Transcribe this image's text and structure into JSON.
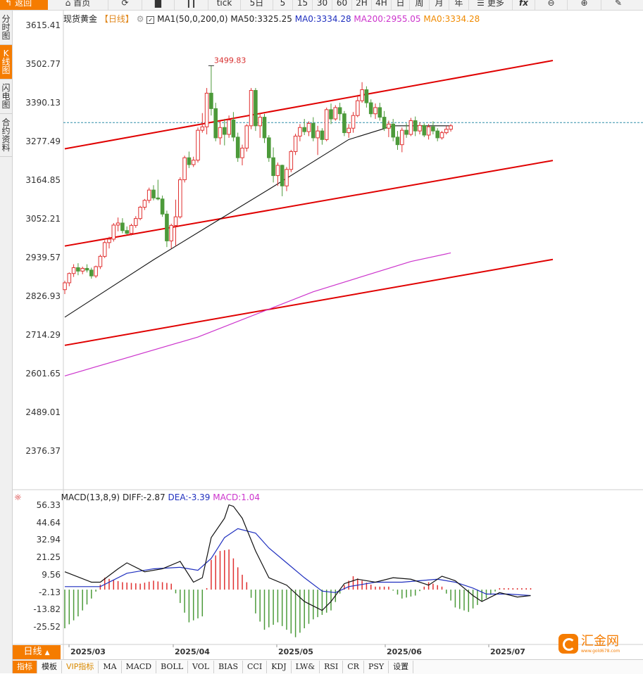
{
  "toolbar": {
    "back": "返回",
    "home": "首页",
    "tick": "tick",
    "periods": [
      "5日",
      "5",
      "15",
      "30",
      "60",
      "2H",
      "4H",
      "日",
      "周",
      "月",
      "年"
    ],
    "more": "更多",
    "fx": "fx"
  },
  "sidebar": {
    "tabs": [
      "分时图",
      "K线图",
      "闪电图",
      "合约资料"
    ],
    "active": 1
  },
  "main_header": {
    "instrument": "现货黄金",
    "period_label": "【日线】",
    "ma1": "MA1(50,0,200,0)",
    "ma50": "MA50:3325.25",
    "ma0a": "MA0:3334.28",
    "ma200": "MA200:2955.05",
    "ma0b": "MA0:3334.28"
  },
  "price_axis": [
    "3615.41",
    "3502.77",
    "3390.13",
    "3277.49",
    "3164.85",
    "3052.21",
    "2939.57",
    "2826.93",
    "2714.29",
    "2601.65",
    "2489.01",
    "2376.37"
  ],
  "high_label": "3499.83",
  "macd_header": {
    "name": "MACD(13,8,9)",
    "diff": "DIFF:-2.87",
    "dea": "DEA:-3.39",
    "macd": "MACD:1.04"
  },
  "macd_axis": [
    "56.33",
    "44.64",
    "32.94",
    "21.25",
    "9.56",
    "-2.13",
    "-13.82",
    "-25.52"
  ],
  "time_axis": [
    "2025/03",
    "2025/04",
    "2025/05",
    "2025/06",
    "2025/07"
  ],
  "bottom_tabs": {
    "label": "日线",
    "tabs": [
      "指标",
      "模板",
      "VIP指标",
      "MA",
      "MACD",
      "BOLL",
      "VOL",
      "BIAS",
      "CCI",
      "KDJ",
      "LW&",
      "RSI",
      "CR",
      "PSY",
      "设置"
    ]
  },
  "logo": {
    "text": "汇金网",
    "url_text": "www.gold678.com"
  },
  "colors": {
    "accent": "#f57c00",
    "up": "#e03030",
    "down": "#4c9a3a",
    "channel": "#e00000",
    "ma200": "#cc33cc",
    "dea": "#1f2fbf"
  },
  "chart_data": {
    "type": "candlestick",
    "ylim": [
      2320,
      3640
    ],
    "candles_ohlc": [
      [
        2848,
        2874,
        2835,
        2868
      ],
      [
        2868,
        2898,
        2858,
        2895
      ],
      [
        2895,
        2922,
        2885,
        2912
      ],
      [
        2912,
        2925,
        2890,
        2902
      ],
      [
        2902,
        2915,
        2893,
        2910
      ],
      [
        2910,
        2922,
        2898,
        2905
      ],
      [
        2905,
        2912,
        2880,
        2888
      ],
      [
        2888,
        2918,
        2882,
        2915
      ],
      [
        2915,
        2950,
        2908,
        2945
      ],
      [
        2945,
        2992,
        2940,
        2985
      ],
      [
        2985,
        3002,
        2968,
        2995
      ],
      [
        2995,
        3042,
        2988,
        3036
      ],
      [
        3036,
        3058,
        3018,
        3042
      ],
      [
        3042,
        3056,
        3012,
        3020
      ],
      [
        3020,
        3032,
        3008,
        3012
      ],
      [
        3012,
        3040,
        3006,
        3035
      ],
      [
        3035,
        3062,
        3028,
        3055
      ],
      [
        3055,
        3092,
        3050,
        3088
      ],
      [
        3088,
        3112,
        3080,
        3108
      ],
      [
        3108,
        3145,
        3100,
        3138
      ],
      [
        3138,
        3152,
        3108,
        3115
      ],
      [
        3115,
        3168,
        3108,
        3112
      ],
      [
        3112,
        3122,
        3060,
        3068
      ],
      [
        3068,
        3078,
        2972,
        2990
      ],
      [
        2990,
        3040,
        2968,
        3035
      ],
      [
        3035,
        3110,
        2975,
        3060
      ],
      [
        3060,
        3175,
        3055,
        3168
      ],
      [
        3168,
        3238,
        3160,
        3232
      ],
      [
        3232,
        3250,
        3202,
        3212
      ],
      [
        3212,
        3235,
        3205,
        3225
      ],
      [
        3225,
        3320,
        3218,
        3312
      ],
      [
        3312,
        3362,
        3305,
        3322
      ],
      [
        3322,
        3435,
        3300,
        3420
      ],
      [
        3420,
        3500,
        3355,
        3375
      ],
      [
        3375,
        3392,
        3280,
        3290
      ],
      [
        3290,
        3338,
        3270,
        3320
      ],
      [
        3320,
        3345,
        3268,
        3300
      ],
      [
        3300,
        3355,
        3290,
        3342
      ],
      [
        3342,
        3365,
        3280,
        3292
      ],
      [
        3292,
        3305,
        3220,
        3232
      ],
      [
        3232,
        3270,
        3210,
        3260
      ],
      [
        3260,
        3330,
        3250,
        3325
      ],
      [
        3325,
        3435,
        3315,
        3428
      ],
      [
        3428,
        3435,
        3310,
        3325
      ],
      [
        3325,
        3362,
        3290,
        3350
      ],
      [
        3350,
        3360,
        3275,
        3290
      ],
      [
        3290,
        3298,
        3220,
        3232
      ],
      [
        3232,
        3262,
        3160,
        3180
      ],
      [
        3180,
        3218,
        3150,
        3210
      ],
      [
        3210,
        3212,
        3120,
        3150
      ],
      [
        3150,
        3205,
        3135,
        3198
      ],
      [
        3198,
        3255,
        3190,
        3250
      ],
      [
        3250,
        3302,
        3240,
        3295
      ],
      [
        3295,
        3330,
        3280,
        3320
      ],
      [
        3320,
        3345,
        3298,
        3308
      ],
      [
        3308,
        3338,
        3295,
        3332
      ],
      [
        3332,
        3350,
        3280,
        3290
      ],
      [
        3290,
        3325,
        3240,
        3310
      ],
      [
        3310,
        3318,
        3270,
        3285
      ],
      [
        3285,
        3378,
        3280,
        3372
      ],
      [
        3372,
        3390,
        3330,
        3345
      ],
      [
        3345,
        3385,
        3340,
        3378
      ],
      [
        3378,
        3392,
        3340,
        3360
      ],
      [
        3360,
        3368,
        3295,
        3305
      ],
      [
        3305,
        3330,
        3290,
        3318
      ],
      [
        3318,
        3365,
        3305,
        3355
      ],
      [
        3355,
        3415,
        3350,
        3398
      ],
      [
        3398,
        3452,
        3392,
        3430
      ],
      [
        3430,
        3440,
        3378,
        3392
      ],
      [
        3392,
        3402,
        3350,
        3360
      ],
      [
        3360,
        3390,
        3345,
        3378
      ],
      [
        3378,
        3392,
        3340,
        3350
      ],
      [
        3350,
        3368,
        3310,
        3318
      ],
      [
        3318,
        3340,
        3292,
        3330
      ],
      [
        3330,
        3345,
        3280,
        3292
      ],
      [
        3292,
        3310,
        3255,
        3270
      ],
      [
        3270,
        3320,
        3248,
        3312
      ],
      [
        3312,
        3332,
        3290,
        3300
      ],
      [
        3300,
        3348,
        3295,
        3340
      ],
      [
        3340,
        3352,
        3295,
        3310
      ],
      [
        3310,
        3335,
        3300,
        3326
      ],
      [
        3326,
        3332,
        3292,
        3298
      ],
      [
        3298,
        3330,
        3285,
        3322
      ],
      [
        3322,
        3338,
        3300,
        3310
      ],
      [
        3310,
        3318,
        3280,
        3290
      ],
      [
        3290,
        3310,
        3285,
        3305
      ],
      [
        3305,
        3325,
        3300,
        3315
      ],
      [
        3315,
        3330,
        3308,
        3325
      ]
    ],
    "ma50": [
      [
        0,
        2768
      ],
      [
        20,
        2935
      ],
      [
        32,
        3030
      ],
      [
        46,
        3140
      ],
      [
        64,
        3285
      ],
      [
        74,
        3325
      ],
      [
        87,
        3325
      ]
    ],
    "ma200": [
      [
        0,
        2597
      ],
      [
        30,
        2710
      ],
      [
        56,
        2842
      ],
      [
        78,
        2930
      ],
      [
        87,
        2955
      ]
    ],
    "reference_price": 3334.28,
    "channel_lines": [
      {
        "start": [
          0,
          3258
        ],
        "end": [
          110,
          3515
        ]
      },
      {
        "start": [
          0,
          2975
        ],
        "end": [
          110,
          3224
        ]
      },
      {
        "start": [
          0,
          2686
        ],
        "end": [
          110,
          2936
        ]
      }
    ],
    "macd": {
      "ylim": [
        -33,
        60
      ],
      "diff": [
        [
          0,
          12
        ],
        [
          6,
          5
        ],
        [
          8,
          5
        ],
        [
          12,
          14
        ],
        [
          14,
          18
        ],
        [
          18,
          12
        ],
        [
          22,
          14
        ],
        [
          26,
          19
        ],
        [
          29,
          5
        ],
        [
          31,
          8
        ],
        [
          33,
          35
        ],
        [
          36,
          48
        ],
        [
          37,
          57
        ],
        [
          38,
          56
        ],
        [
          40,
          48
        ],
        [
          43,
          26
        ],
        [
          46,
          8
        ],
        [
          50,
          3
        ],
        [
          54,
          -8
        ],
        [
          58,
          -14
        ],
        [
          60,
          -8
        ],
        [
          63,
          4
        ],
        [
          66,
          7
        ],
        [
          70,
          5
        ],
        [
          74,
          8
        ],
        [
          78,
          7
        ],
        [
          82,
          3
        ],
        [
          85,
          9
        ],
        [
          88,
          6
        ],
        [
          92,
          -4
        ],
        [
          94,
          -8
        ],
        [
          98,
          -2
        ],
        [
          102,
          -5
        ],
        [
          105,
          -4
        ]
      ],
      "dea": [
        [
          0,
          2
        ],
        [
          8,
          2
        ],
        [
          14,
          11
        ],
        [
          20,
          14
        ],
        [
          26,
          15
        ],
        [
          30,
          13
        ],
        [
          33,
          21
        ],
        [
          36,
          35
        ],
        [
          39,
          41
        ],
        [
          43,
          38
        ],
        [
          46,
          28
        ],
        [
          50,
          18
        ],
        [
          54,
          8
        ],
        [
          58,
          -1
        ],
        [
          61,
          -2
        ],
        [
          64,
          2
        ],
        [
          70,
          5
        ],
        [
          76,
          5
        ],
        [
          80,
          6
        ],
        [
          84,
          7
        ],
        [
          88,
          5
        ],
        [
          92,
          1
        ],
        [
          95,
          -3
        ],
        [
          100,
          -3
        ],
        [
          105,
          -4
        ]
      ],
      "histogram_markers": [
        [
          0,
          -26
        ],
        [
          3,
          -18
        ],
        [
          6,
          -6
        ],
        [
          9,
          8
        ],
        [
          13,
          5
        ],
        [
          17,
          4
        ],
        [
          20,
          6
        ],
        [
          24,
          4
        ],
        [
          28,
          -22
        ],
        [
          31,
          -18
        ],
        [
          33,
          20
        ],
        [
          35,
          26
        ],
        [
          37,
          27
        ],
        [
          39,
          15
        ],
        [
          41,
          5
        ],
        [
          43,
          -16
        ],
        [
          45,
          -27
        ],
        [
          48,
          -22
        ],
        [
          52,
          -32
        ],
        [
          56,
          -20
        ],
        [
          60,
          -14
        ],
        [
          63,
          3
        ],
        [
          65,
          9
        ],
        [
          67,
          6
        ],
        [
          70,
          2
        ],
        [
          73,
          2
        ],
        [
          76,
          -6
        ],
        [
          79,
          -4
        ],
        [
          82,
          5
        ],
        [
          85,
          2
        ],
        [
          88,
          -12
        ],
        [
          91,
          -15
        ],
        [
          94,
          -8
        ],
        [
          98,
          1
        ],
        [
          102,
          1
        ],
        [
          105,
          1
        ]
      ]
    }
  }
}
